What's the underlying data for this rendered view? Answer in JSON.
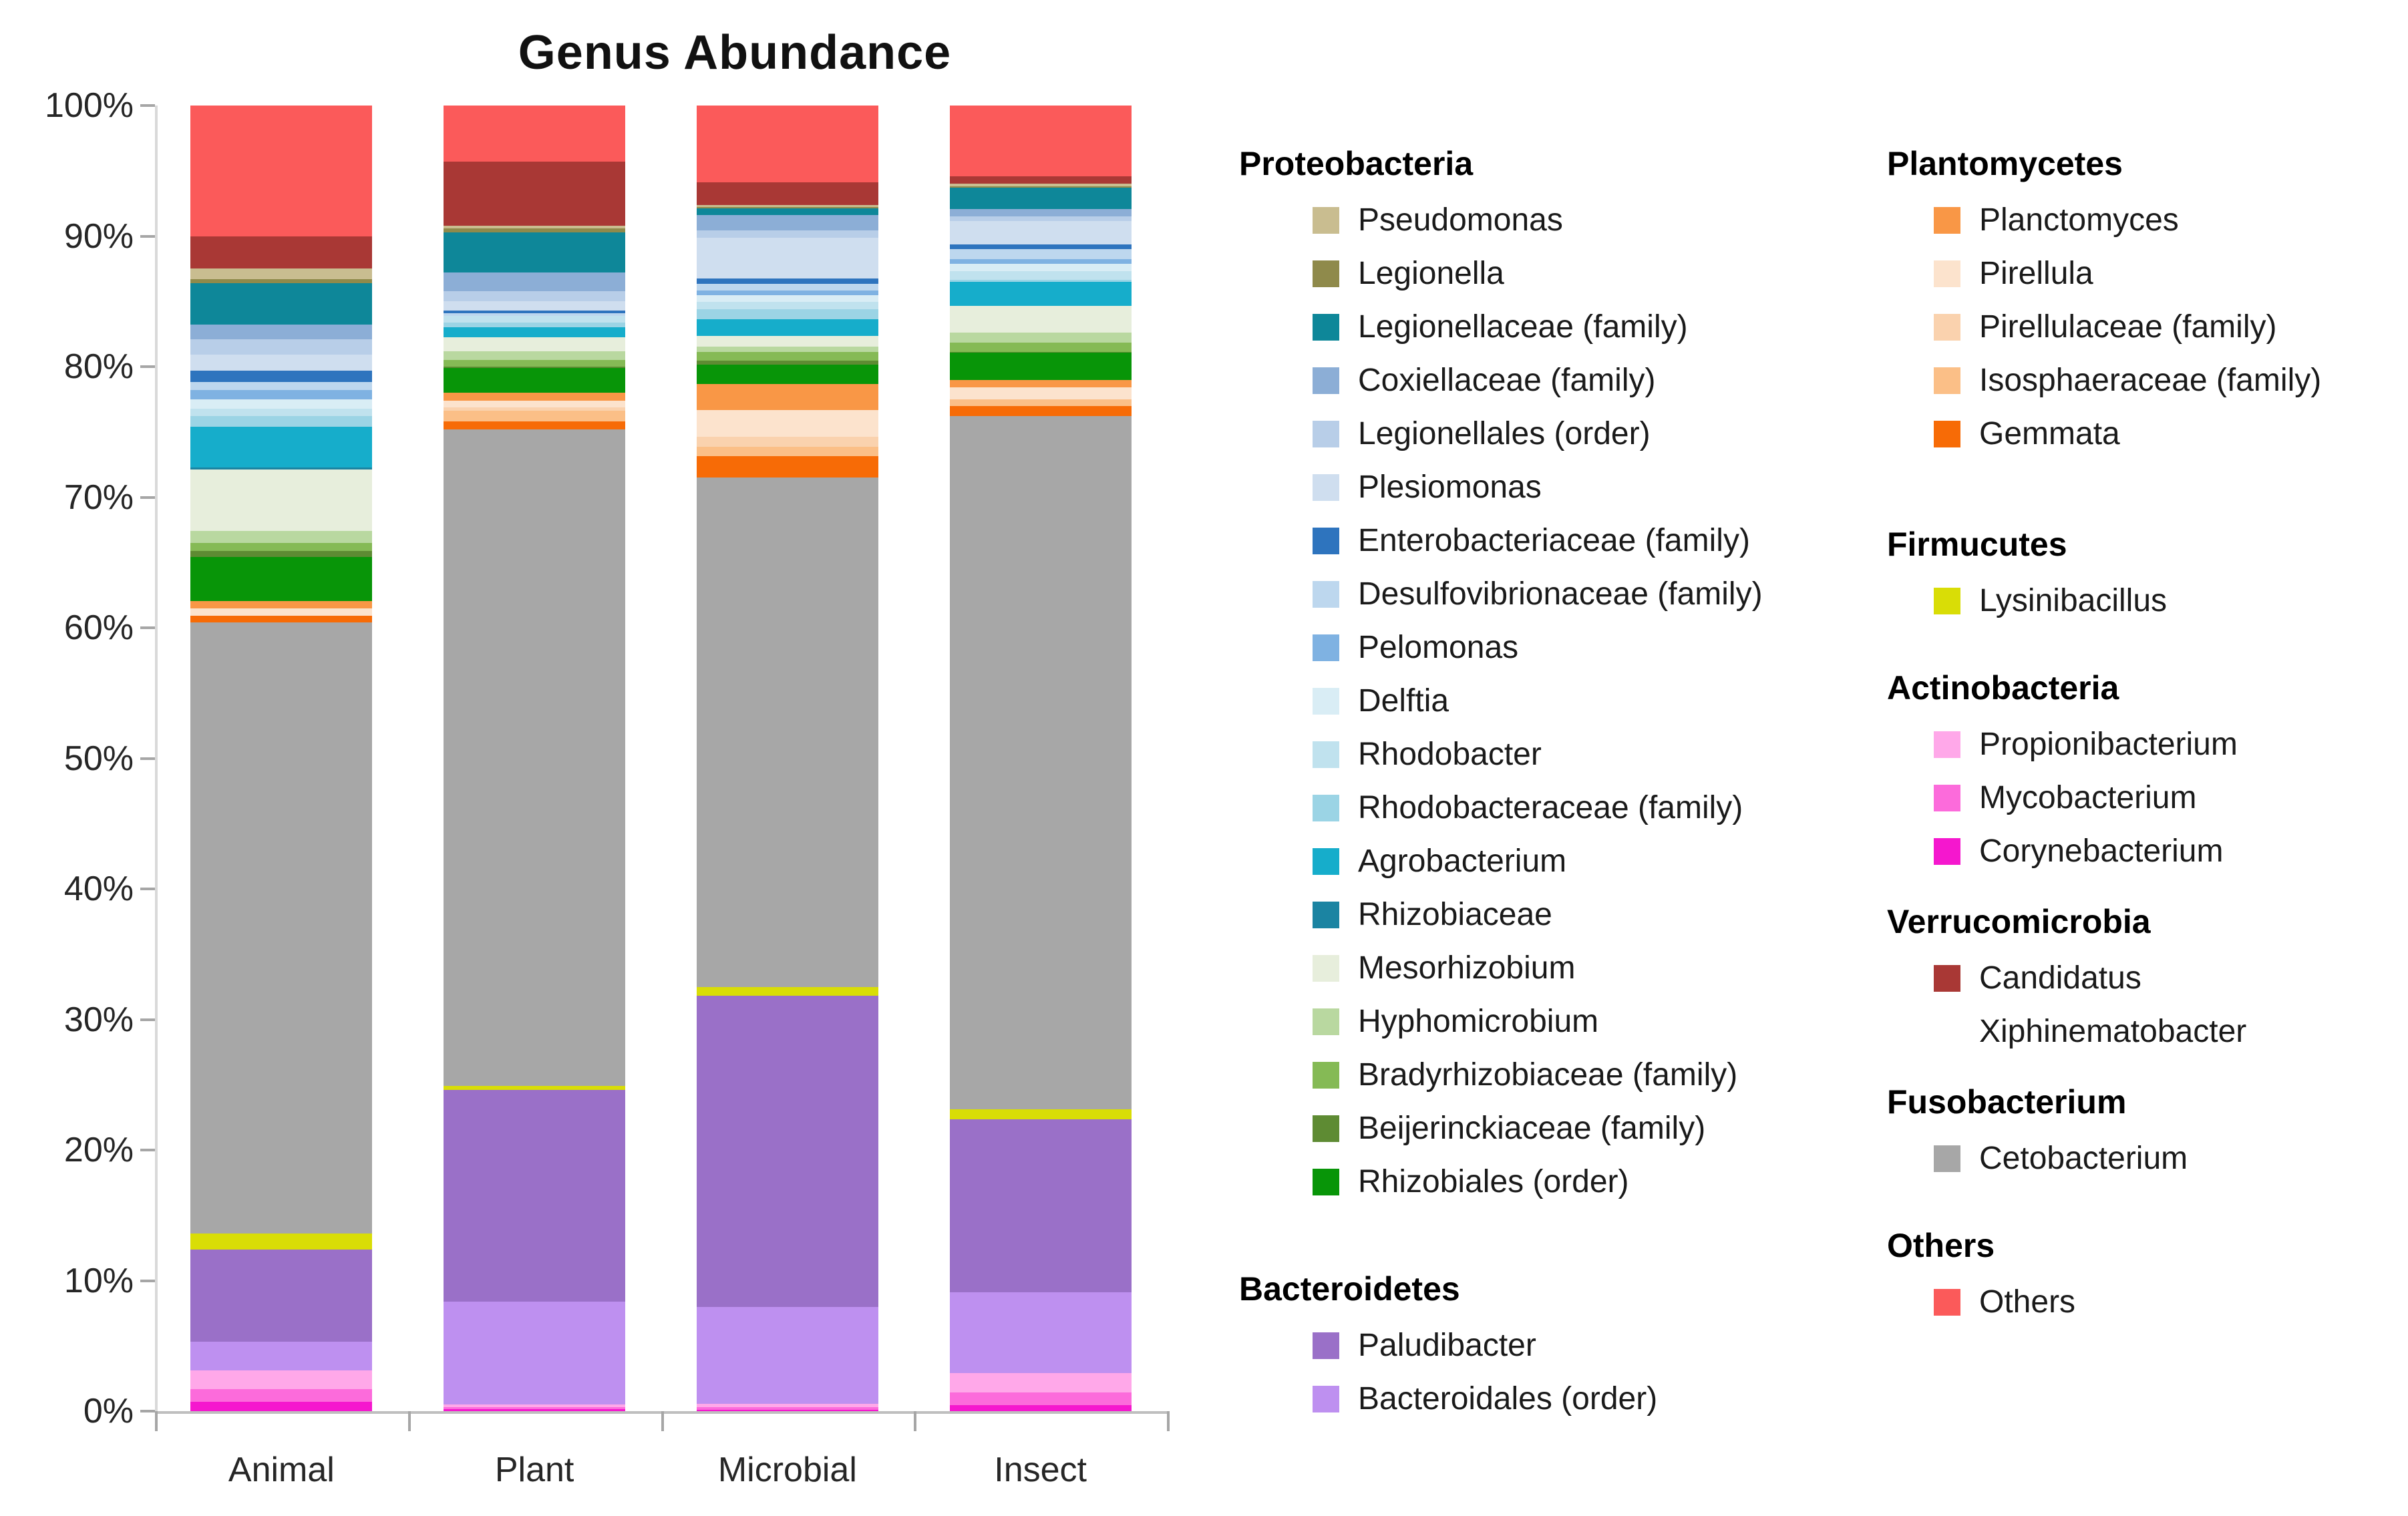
{
  "title": "Genus Abundance",
  "y_axis": {
    "min": 0,
    "max": 100,
    "step": 10,
    "tick_labels": [
      "100%",
      "90%",
      "80%",
      "70%",
      "60%",
      "50%",
      "40%",
      "30%",
      "20%",
      "10%",
      "0%"
    ]
  },
  "chart_data": {
    "type": "bar",
    "stacked": true,
    "title": "Genus Abundance",
    "xlabel": "",
    "ylabel": "",
    "ylim": [
      0,
      100
    ],
    "grid": false,
    "legend_position": "right",
    "categories": [
      "Animal",
      "Plant",
      "Microbial",
      "Insect"
    ],
    "series": [
      {
        "name": "Corynebacterium",
        "group": "Actinobacteria",
        "color": "#F517CE",
        "values": [
          0.7,
          0.15,
          0.1,
          0.45
        ]
      },
      {
        "name": "Mycobacterium",
        "group": "Actinobacteria",
        "color": "#FC6BDB",
        "values": [
          1.0,
          0.15,
          0.2,
          1.0
        ]
      },
      {
        "name": "Propionibacterium",
        "group": "Actinobacteria",
        "color": "#FFA8E9",
        "values": [
          1.4,
          0.2,
          0.25,
          1.45
        ]
      },
      {
        "name": "Bacteroidales (order)",
        "group": "Bacteroidetes",
        "color": "#BE90F0",
        "values": [
          2.2,
          7.9,
          7.45,
          6.2
        ]
      },
      {
        "name": "Paludibacter",
        "group": "Bacteroidetes",
        "color": "#9A70C8",
        "values": [
          7.1,
          16.2,
          23.8,
          13.25
        ]
      },
      {
        "name": "Lysinibacillus",
        "group": "Firmucutes",
        "color": "#D9DD06",
        "values": [
          1.2,
          0.3,
          0.7,
          0.75
        ]
      },
      {
        "name": "Cetobacterium",
        "group": "Fusobacterium",
        "color": "#A7A7A7",
        "values": [
          46.8,
          50.3,
          39.0,
          53.1
        ]
      },
      {
        "name": "Gemmata",
        "group": "Plantomycetes",
        "color": "#F76B06",
        "values": [
          0.5,
          0.6,
          1.65,
          0.8
        ]
      },
      {
        "name": "Isosphaeraceae (family)",
        "group": "Plantomycetes",
        "color": "#FBBF87",
        "values": [
          0.0,
          0.8,
          0.7,
          0.5
        ]
      },
      {
        "name": "Pirellulaceae (family)",
        "group": "Plantomycetes",
        "color": "#FAD2AE",
        "values": [
          0.0,
          0.3,
          0.8,
          0.0
        ]
      },
      {
        "name": "Pirellula",
        "group": "Plantomycetes",
        "color": "#FCE3CD",
        "values": [
          0.6,
          0.5,
          2.0,
          0.9
        ]
      },
      {
        "name": "Planctomyces",
        "group": "Plantomycetes",
        "color": "#F99746",
        "values": [
          0.55,
          0.6,
          2.0,
          0.6
        ]
      },
      {
        "name": "Rhizobiales (order)",
        "group": "Proteobacteria",
        "color": "#089508",
        "values": [
          3.35,
          1.9,
          1.5,
          2.05
        ]
      },
      {
        "name": "Beijerinckiaceae (family)",
        "group": "Proteobacteria",
        "color": "#5E8B33",
        "values": [
          0.5,
          0.1,
          0.3,
          0.1
        ]
      },
      {
        "name": "Bradyrhizobiaceae (family)",
        "group": "Proteobacteria",
        "color": "#85BA55",
        "values": [
          0.6,
          0.5,
          0.7,
          0.7
        ]
      },
      {
        "name": "Hyphomicrobium",
        "group": "Proteobacteria",
        "color": "#B9D8A0",
        "values": [
          0.9,
          0.7,
          0.4,
          0.75
        ]
      },
      {
        "name": "Mesorhizobium",
        "group": "Proteobacteria",
        "color": "#E7EEDC",
        "values": [
          4.7,
          1.05,
          0.8,
          2.05
        ]
      },
      {
        "name": "Rhizobiaceae",
        "group": "Proteobacteria",
        "color": "#1B84A2",
        "values": [
          0.2,
          0.0,
          0.0,
          0.0
        ]
      },
      {
        "name": "Agrobacterium",
        "group": "Proteobacteria",
        "color": "#16ADCB",
        "values": [
          3.1,
          0.75,
          1.3,
          1.85
        ]
      },
      {
        "name": "Rhodobacteraceae (family)",
        "group": "Proteobacteria",
        "color": "#9BD4E5",
        "values": [
          0.8,
          0.4,
          0.75,
          0.15
        ]
      },
      {
        "name": "Rhodobacter",
        "group": "Proteobacteria",
        "color": "#C0E2EE",
        "values": [
          0.6,
          0.5,
          0.55,
          0.65
        ]
      },
      {
        "name": "Delftia",
        "group": "Proteobacteria",
        "color": "#D9EDF5",
        "values": [
          0.7,
          0.0,
          0.5,
          0.6
        ]
      },
      {
        "name": "Pelomonas",
        "group": "Proteobacteria",
        "color": "#7FB2E2",
        "values": [
          0.7,
          0.0,
          0.4,
          0.35
        ]
      },
      {
        "name": "Desulfovibrionaceae (family)",
        "group": "Proteobacteria",
        "color": "#BDD7EE",
        "values": [
          0.6,
          0.2,
          0.5,
          0.75
        ]
      },
      {
        "name": "Enterobacteriaceae (family)",
        "group": "Proteobacteria",
        "color": "#2E74BE",
        "values": [
          0.9,
          0.2,
          0.4,
          0.35
        ]
      },
      {
        "name": "Plesiomonas",
        "group": "Proteobacteria",
        "color": "#CFDEEF",
        "values": [
          1.2,
          0.7,
          3.1,
          1.8
        ]
      },
      {
        "name": "Legionellales (order)",
        "group": "Proteobacteria",
        "color": "#B8CEE8",
        "values": [
          1.2,
          0.8,
          0.6,
          0.35
        ]
      },
      {
        "name": "Coxiellaceae (family)",
        "group": "Proteobacteria",
        "color": "#8CAED6",
        "values": [
          1.1,
          1.4,
          1.15,
          0.55
        ]
      },
      {
        "name": "Legionellaceae (family)",
        "group": "Proteobacteria",
        "color": "#0E8799",
        "values": [
          3.2,
          3.1,
          0.5,
          1.65
        ]
      },
      {
        "name": "Legionella",
        "group": "Proteobacteria",
        "color": "#8F8A4B",
        "values": [
          0.3,
          0.3,
          0.1,
          0.1
        ]
      },
      {
        "name": "Pseudomonas",
        "group": "Proteobacteria",
        "color": "#C9BD90",
        "values": [
          0.8,
          0.2,
          0.2,
          0.2
        ]
      },
      {
        "name": "Candidatus Xiphinematobacter",
        "group": "Verrucomicrobia",
        "color": "#A93835",
        "values": [
          2.5,
          4.9,
          1.7,
          0.6
        ]
      },
      {
        "name": "Others",
        "group": "Others",
        "color": "#FB5A5A",
        "values": [
          10.0,
          4.3,
          5.9,
          5.4
        ]
      }
    ]
  },
  "legend": {
    "columns": [
      {
        "groups": [
          {
            "header": "Proteobacteria",
            "gap": 0,
            "items": [
              {
                "label": "Pseudomonas",
                "color": "#C9BD90"
              },
              {
                "label": "Legionella",
                "color": "#8F8A4B"
              },
              {
                "label": "Legionellaceae (family)",
                "color": "#0E8799"
              },
              {
                "label": "Coxiellaceae (family)",
                "color": "#8CAED6"
              },
              {
                "label": "Legionellales (order)",
                "color": "#B8CEE8"
              },
              {
                "label": "Plesiomonas",
                "color": "#CFDEEF"
              },
              {
                "label": "Enterobacteriaceae (family)",
                "color": "#2E74BE"
              },
              {
                "label": "Desulfovibrionaceae (family)",
                "color": "#BDD7EE"
              },
              {
                "label": "Pelomonas",
                "color": "#7FB2E2"
              },
              {
                "label": "Delftia",
                "color": "#D9EDF5"
              },
              {
                "label": "Rhodobacter",
                "color": "#C0E2EE"
              },
              {
                "label": "Rhodobacteraceae (family)",
                "color": "#9BD4E5"
              },
              {
                "label": "Agrobacterium",
                "color": "#16ADCB"
              },
              {
                "label": "Rhizobiaceae",
                "color": "#1B84A2"
              },
              {
                "label": "Mesorhizobium",
                "color": "#E7EEDC"
              },
              {
                "label": "Hyphomicrobium",
                "color": "#B9D8A0"
              },
              {
                "label": "Bradyrhizobiaceae (family)",
                "color": "#85BA55"
              },
              {
                "label": "Beijerinckiaceae (family)",
                "color": "#5E8B33"
              },
              {
                "label": "Rhizobiales (order)",
                "color": "#089508"
              }
            ]
          },
          {
            "header": "Bacteroidetes",
            "gap": 75,
            "items": [
              {
                "label": "Paludibacter",
                "color": "#9A70C8"
              },
              {
                "label": "Bacteroidales (order)",
                "color": "#BE90F0"
              }
            ]
          }
        ]
      },
      {
        "groups": [
          {
            "header": "Plantomycetes",
            "gap": 0,
            "items": [
              {
                "label": "Planctomyces",
                "color": "#F99746"
              },
              {
                "label": "Pirellula",
                "color": "#FCE3CD"
              },
              {
                "label": "Pirellulaceae (family)",
                "color": "#FAD2AE"
              },
              {
                "label": "Isosphaeraceae (family)",
                "color": "#FBBF87"
              },
              {
                "label": "Gemmata",
                "color": "#F76B06"
              }
            ]
          },
          {
            "header": "Firmucutes",
            "gap": 80,
            "items": [
              {
                "label": "Lysinibacillus",
                "color": "#D9DD06"
              }
            ]
          },
          {
            "header": "Actinobacteria",
            "gap": 45,
            "items": [
              {
                "label": "Propionibacterium",
                "color": "#FFA8E9"
              },
              {
                "label": "Mycobacterium",
                "color": "#FC6BDB"
              },
              {
                "label": "Corynebacterium",
                "color": "#F517CE"
              }
            ]
          },
          {
            "header": "Verrucomicrobia",
            "gap": 20,
            "items": [
              {
                "label": "Candidatus\nXiphinematobacter",
                "color": "#A93835"
              }
            ]
          },
          {
            "header": "Fusobacterium",
            "gap": 20,
            "items": [
              {
                "label": "Cetobacterium",
                "color": "#A7A7A7"
              }
            ]
          },
          {
            "header": "Others",
            "gap": 45,
            "items": [
              {
                "label": "Others",
                "color": "#FB5A5A"
              }
            ]
          }
        ]
      }
    ]
  }
}
